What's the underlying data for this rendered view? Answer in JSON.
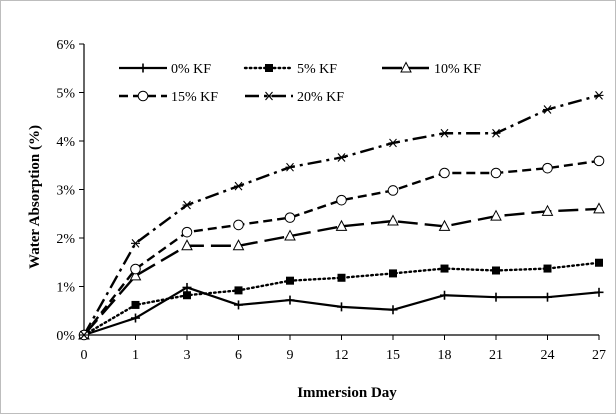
{
  "chart_data": {
    "type": "line",
    "title": "",
    "xlabel": "Immersion Day",
    "ylabel": "Water Absorption (%)",
    "x": [
      0,
      1,
      3,
      6,
      9,
      12,
      15,
      18,
      21,
      24,
      27
    ],
    "x_tick_labels": [
      "0",
      "1",
      "3",
      "6",
      "9",
      "12",
      "15",
      "18",
      "21",
      "24",
      "27"
    ],
    "y_ticks": [
      "0%",
      "1%",
      "2%",
      "3%",
      "4%",
      "5%",
      "6%"
    ],
    "ylim": [
      0,
      6
    ],
    "x_axis_scale": "categorical (equally spaced)",
    "grid": false,
    "legend_position": "top-left, inside plot, two rows",
    "series": [
      {
        "name": "0% KF",
        "marker": "plus",
        "line": "solid",
        "values": [
          0,
          0.35,
          0.98,
          0.62,
          0.72,
          0.58,
          0.52,
          0.82,
          0.78,
          0.78,
          0.88
        ]
      },
      {
        "name": "5% KF",
        "marker": "filled-square",
        "line": "dotted",
        "values": [
          0,
          0.62,
          0.82,
          0.92,
          1.12,
          1.18,
          1.27,
          1.37,
          1.33,
          1.37,
          1.49
        ]
      },
      {
        "name": "10% KF",
        "marker": "open-triangle",
        "line": "long-dash",
        "values": [
          0,
          1.22,
          1.84,
          1.84,
          2.04,
          2.24,
          2.35,
          2.24,
          2.45,
          2.55,
          2.6
        ]
      },
      {
        "name": "15% KF",
        "marker": "open-circle",
        "line": "dash",
        "values": [
          0,
          1.36,
          2.12,
          2.27,
          2.42,
          2.78,
          2.98,
          3.34,
          3.34,
          3.44,
          3.59
        ]
      },
      {
        "name": "20% KF",
        "marker": "star",
        "line": "dash-dot",
        "values": [
          0,
          1.89,
          2.68,
          3.07,
          3.46,
          3.66,
          3.96,
          4.16,
          4.16,
          4.65,
          4.94
        ]
      }
    ]
  }
}
